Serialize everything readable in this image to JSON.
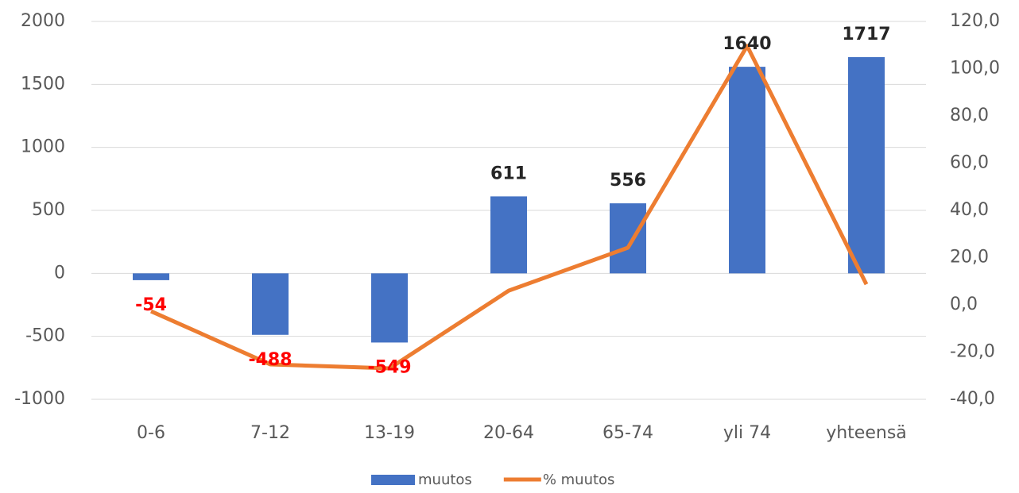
{
  "chart_data": {
    "type": "bar",
    "categories": [
      "0-6",
      "7-12",
      "13-19",
      "20-64",
      "65-74",
      "yli 74",
      "yhteensä"
    ],
    "series": [
      {
        "name": "muutos",
        "type": "bar",
        "color": "#4472c4",
        "values": [
          -54,
          -488,
          -549,
          611,
          556,
          1640,
          1717
        ]
      },
      {
        "name": "% muutos",
        "type": "line",
        "color": "#ed7d31",
        "axis": "y2",
        "values": [
          -2.7,
          -25.2,
          -26.9,
          6.0,
          24.2,
          109.6,
          8.7
        ]
      }
    ],
    "ylim": [
      -1000,
      2000
    ],
    "yticks": [
      -1000,
      -500,
      0,
      500,
      1000,
      1500,
      2000
    ],
    "y2lim": [
      -40,
      120
    ],
    "y2ticks": [
      {
        "value": -40,
        "label": "-40,0"
      },
      {
        "value": -20,
        "label": "-20,0"
      },
      {
        "value": 0,
        "label": "0,0"
      },
      {
        "value": 20,
        "label": "20,0"
      },
      {
        "value": 40,
        "label": "40,0"
      },
      {
        "value": 60,
        "label": "60,0"
      },
      {
        "value": 80,
        "label": "80,0"
      },
      {
        "value": 100,
        "label": "100,0"
      },
      {
        "value": 120,
        "label": "120,0"
      }
    ],
    "grid": true,
    "legend": "bottom",
    "label_color": "#262626",
    "negative_label_color": "#ff0000"
  }
}
